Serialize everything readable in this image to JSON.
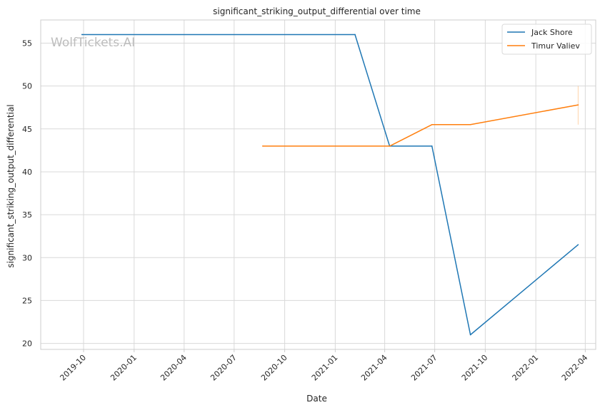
{
  "chart_data": {
    "type": "line",
    "title": "significant_striking_output_differential over time",
    "xlabel": "Date",
    "ylabel": "significant_striking_output_differential",
    "watermark": "WolfTickets.AI",
    "grid": true,
    "legend_position": "top-right",
    "ylim": [
      19.3,
      57.7
    ],
    "xlim": [
      "2019-07-15",
      "2022-04-20"
    ],
    "x_ticks": [
      "2019-10",
      "2020-01",
      "2020-04",
      "2020-07",
      "2020-10",
      "2021-01",
      "2021-04",
      "2021-07",
      "2021-10",
      "2022-01",
      "2022-04"
    ],
    "y_ticks": [
      20,
      25,
      30,
      35,
      40,
      45,
      50,
      55
    ],
    "series": [
      {
        "name": "Jack Shore",
        "color": "#1f77b4",
        "points": [
          {
            "x": "2019-09-28",
            "y": 56.0
          },
          {
            "x": "2021-02-06",
            "y": 56.0
          },
          {
            "x": "2021-04-10",
            "y": 43.0
          },
          {
            "x": "2021-06-26",
            "y": 43.0
          },
          {
            "x": "2021-09-04",
            "y": 21.0
          },
          {
            "x": "2022-03-19",
            "y": 31.5
          }
        ]
      },
      {
        "name": "Timur Valiev",
        "color": "#ff7f0e",
        "points": [
          {
            "x": "2020-08-22",
            "y": 43.0
          },
          {
            "x": "2021-04-10",
            "y": 43.0
          },
          {
            "x": "2021-06-26",
            "y": 45.5
          },
          {
            "x": "2021-09-04",
            "y": 45.5
          },
          {
            "x": "2022-03-19",
            "y": 47.8
          }
        ],
        "error_bar": {
          "x": "2022-03-19",
          "low": 45.5,
          "high": 50.0
        }
      }
    ]
  }
}
